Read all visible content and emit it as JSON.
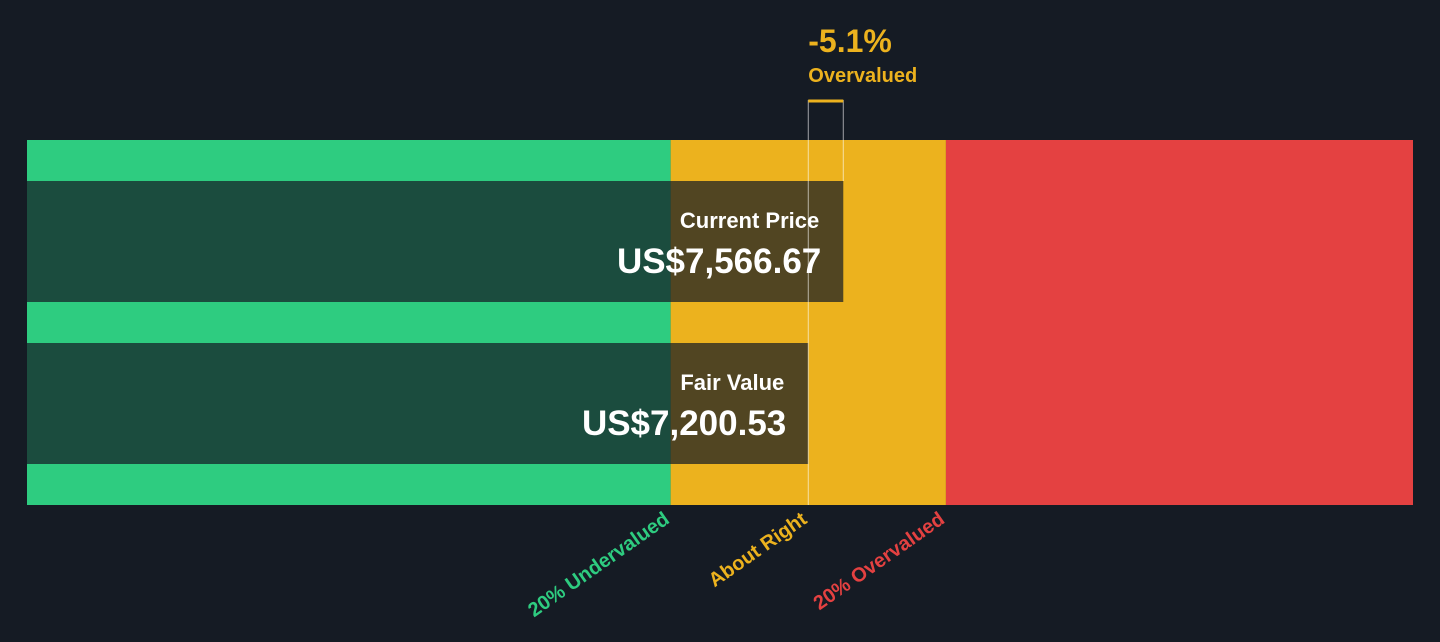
{
  "chart_data": {
    "type": "valuation",
    "difference": {
      "value": -5.1,
      "label": "-5.1%"
    },
    "difference_caption": "Overvalued",
    "categories": [
      "Current Price",
      "Fair Value"
    ],
    "values": [
      7566.67,
      7200.53
    ],
    "value_labels": [
      "US$7,566.67",
      "US$7,200.53"
    ],
    "bar_color": "rgba(21,27,36,0.72)",
    "xlim": [
      -973,
      13527
    ],
    "zones": [
      {
        "name": "20% Undervalued",
        "color": "#2ecc80",
        "end": 5760.42
      },
      {
        "name": "About Right",
        "color": "#ecb21e",
        "end": 8640.64
      },
      {
        "name": "20% Overvalued",
        "color": "#e44141",
        "end": 13527
      }
    ]
  }
}
